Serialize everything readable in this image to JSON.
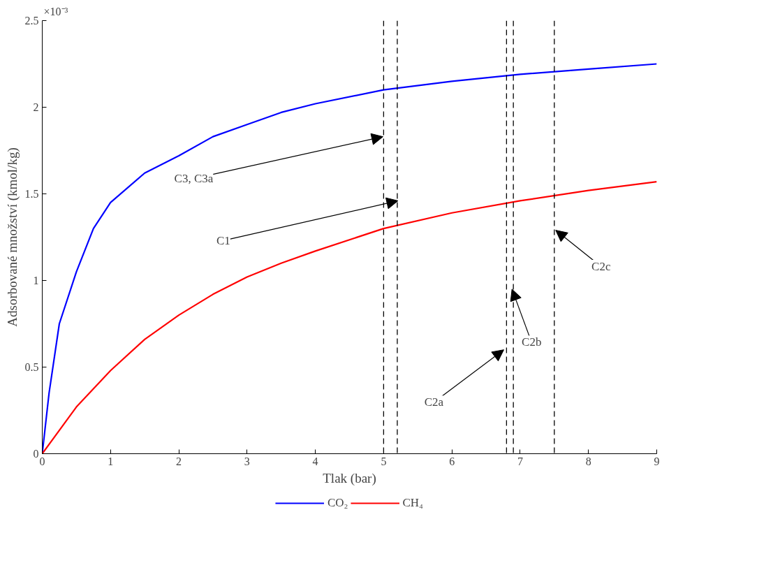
{
  "chart_data": {
    "type": "line",
    "xlabel": "Tlak (bar)",
    "ylabel": "Adsorbované množství (kmol/kg)",
    "xlim": [
      0,
      9
    ],
    "ylim": [
      0,
      2.5
    ],
    "xticks": [
      0,
      1,
      2,
      3,
      4,
      5,
      6,
      7,
      8,
      9
    ],
    "yticks": [
      0,
      0.5,
      1,
      1.5,
      2,
      2.5
    ],
    "grid": false,
    "legend": "bottom",
    "marker": "none",
    "line_style": "solid",
    "series": [
      {
        "name": "CO₂",
        "color": "#0000ff",
        "x": [
          0,
          0.1,
          0.25,
          0.5,
          0.75,
          1,
          1.5,
          2,
          2.5,
          3,
          3.5,
          4,
          5,
          6,
          7,
          8,
          9
        ],
        "values": [
          0,
          0.35,
          0.75,
          1.05,
          1.3,
          1.45,
          1.62,
          1.72,
          1.83,
          1.9,
          1.97,
          2.02,
          2.1,
          2.15,
          2.19,
          2.22,
          2.25
        ]
      },
      {
        "name": "CH₄",
        "color": "#ff0000",
        "x": [
          0,
          0.5,
          1,
          1.5,
          2,
          2.5,
          3,
          3.5,
          4,
          5,
          6,
          7,
          8,
          9
        ],
        "values": [
          0,
          0.27,
          0.48,
          0.66,
          0.8,
          0.92,
          1.02,
          1.1,
          1.17,
          1.3,
          1.39,
          1.46,
          1.52,
          1.57
        ]
      }
    ],
    "ref_lines": [
      {
        "axis": "x",
        "value": 5,
        "color": "#000000",
        "line_style": "dashed"
      },
      {
        "axis": "x",
        "value": 5.2,
        "color": "#000000",
        "line_style": "dashed"
      },
      {
        "axis": "x",
        "value": 6.8,
        "color": "#000000",
        "line_style": "dashed"
      },
      {
        "axis": "x",
        "value": 6.9,
        "color": "#000000",
        "line_style": "dashed"
      },
      {
        "axis": "x",
        "value": 7.5,
        "color": "#000000",
        "line_style": "dashed"
      }
    ],
    "annotations": [
      "×10⁻³",
      {
        "text": "C3, C3a",
        "x": 4.99,
        "y": 1.83
      },
      {
        "text": "C1",
        "x": 5.21,
        "y": 1.46
      },
      {
        "text": "C2a",
        "x": 6.76,
        "y": 0.6
      },
      {
        "text": "C2b",
        "x": 6.88,
        "y": 0.95
      },
      {
        "text": "C2c",
        "x": 7.52,
        "y": 1.29
      }
    ]
  }
}
